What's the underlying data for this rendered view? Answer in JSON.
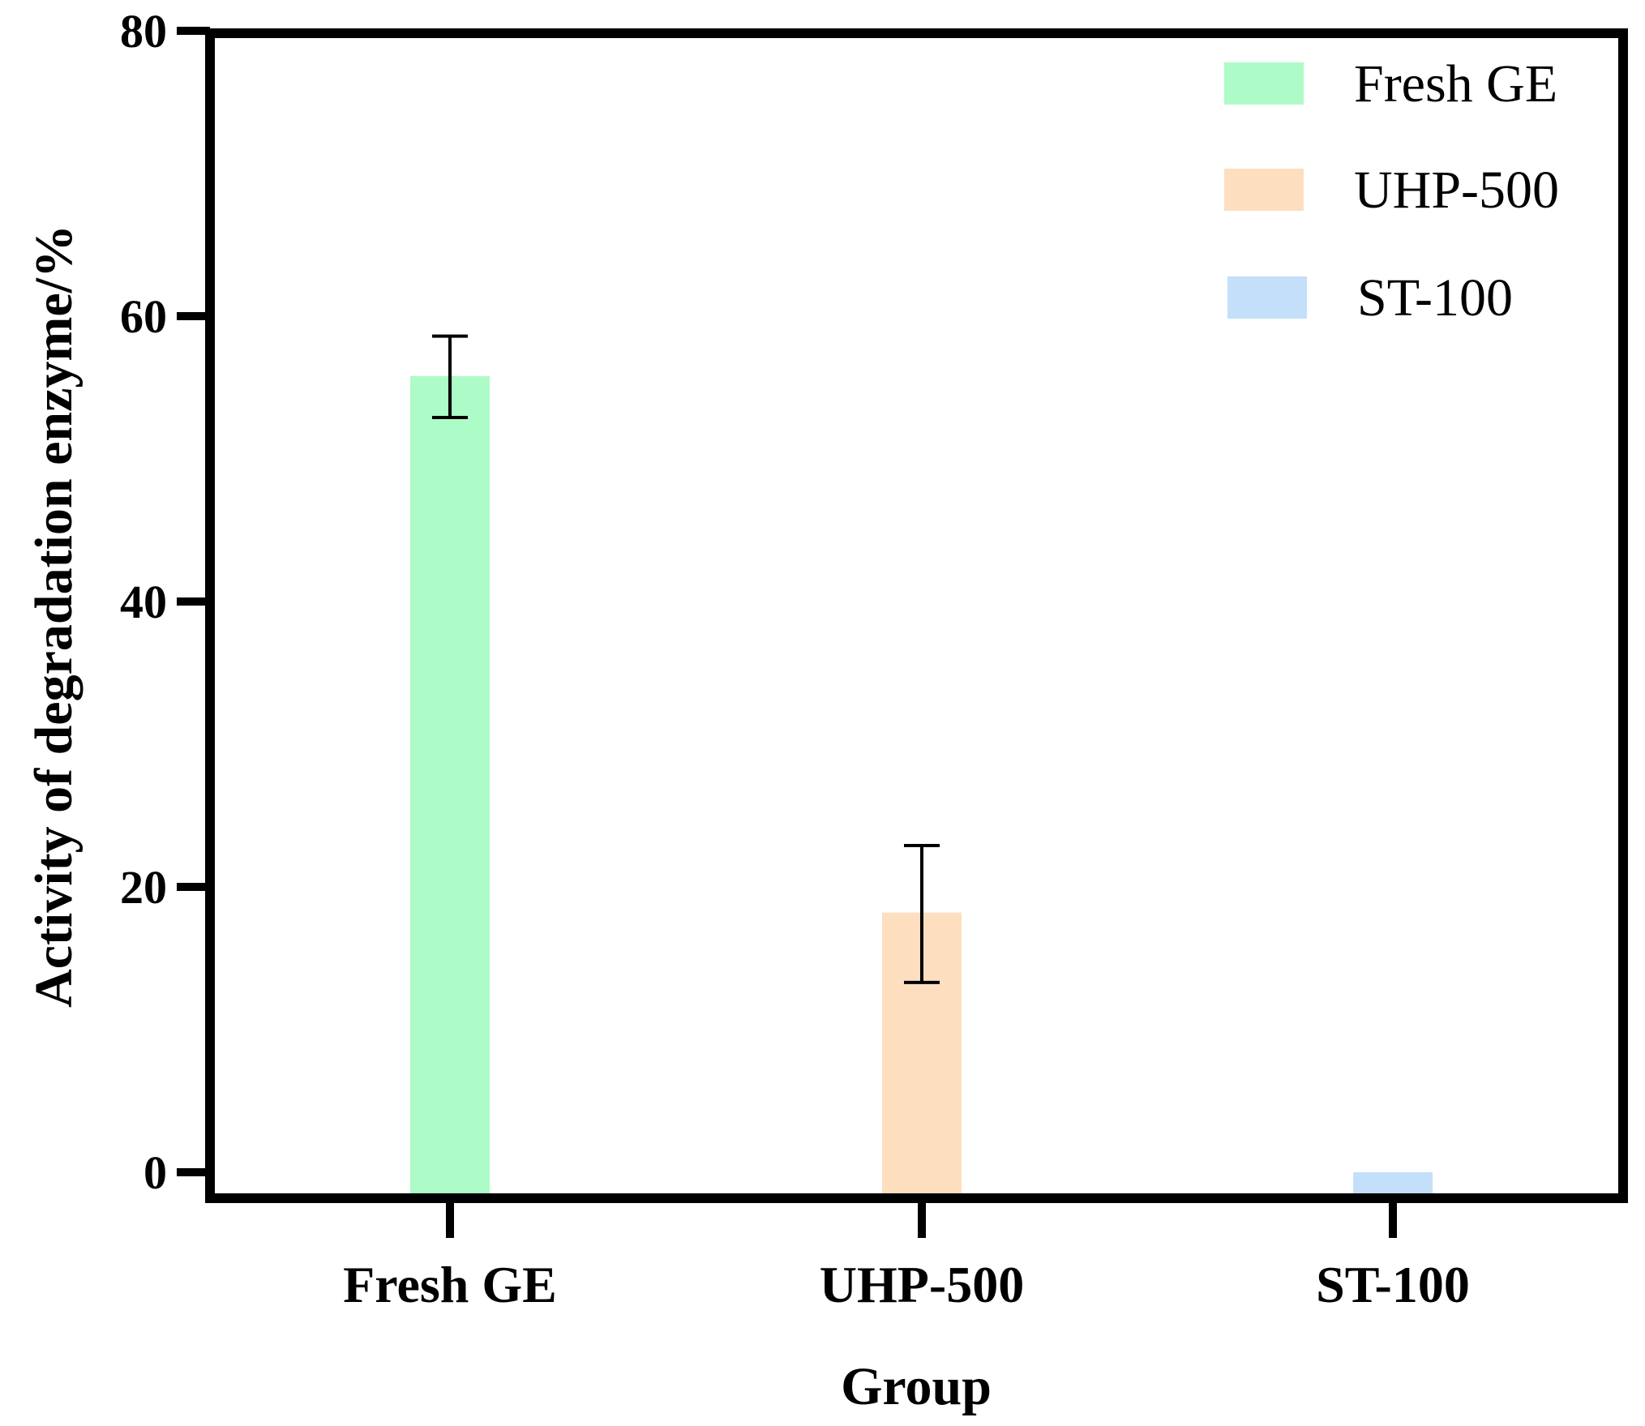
{
  "chart_data": {
    "type": "bar",
    "title": "",
    "xlabel": "Group",
    "ylabel": "Activity of degradation enzyme/%",
    "categories": [
      "Fresh GE",
      "UHP-500",
      "ST-100"
    ],
    "values": [
      55.8,
      18.2,
      0.0
    ],
    "error_low": [
      52.9,
      13.3,
      0.0
    ],
    "error_high": [
      58.6,
      22.9,
      0.0
    ],
    "ylim": [
      0,
      80
    ],
    "yticks": [
      "0",
      "20",
      "40",
      "60",
      "80"
    ],
    "colors": [
      "#adfbc6",
      "#fddfbf",
      "#c3dff9"
    ],
    "legend": {
      "position": "top-right",
      "entries": [
        "Fresh GE",
        "UHP-500",
        "ST-100"
      ]
    }
  }
}
